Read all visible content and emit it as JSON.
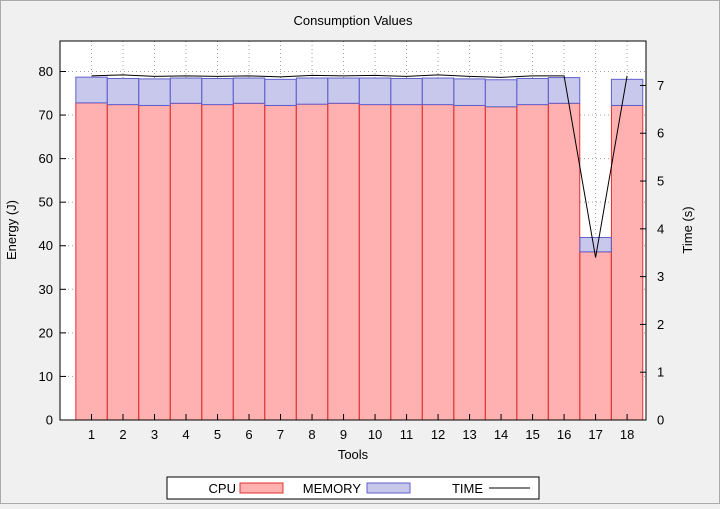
{
  "chart_data": {
    "type": "bar",
    "stacked": true,
    "title": "Consumption Values",
    "xlabel": "Tools",
    "ylabel": "Energy (J)",
    "y2label": "Time (s)",
    "categories": [
      "1",
      "2",
      "3",
      "4",
      "5",
      "6",
      "7",
      "8",
      "9",
      "10",
      "11",
      "12",
      "13",
      "14",
      "15",
      "16",
      "17",
      "18"
    ],
    "ylim": [
      0,
      87
    ],
    "yticks": [
      0,
      10,
      20,
      30,
      40,
      50,
      60,
      70,
      80
    ],
    "y2lim": [
      0,
      7.93
    ],
    "y2ticks": [
      0,
      1,
      2,
      3,
      4,
      5,
      6,
      7
    ],
    "grid": true,
    "legend_position": "bottom",
    "series": [
      {
        "name": "CPU",
        "kind": "bar",
        "color": "#ffb0b0",
        "edge": "#e03030",
        "values": [
          72.8,
          72.4,
          72.2,
          72.7,
          72.4,
          72.7,
          72.2,
          72.5,
          72.7,
          72.4,
          72.4,
          72.4,
          72.2,
          71.9,
          72.4,
          72.7,
          38.6,
          72.2
        ]
      },
      {
        "name": "MEMORY",
        "kind": "bar",
        "color": "#c8c8ec",
        "edge": "#6060cc",
        "values": [
          5.9,
          6.0,
          6.1,
          5.8,
          6.0,
          5.8,
          6.0,
          6.0,
          5.8,
          6.1,
          6.0,
          6.1,
          6.1,
          6.2,
          6.0,
          5.9,
          3.3,
          6.0
        ]
      },
      {
        "name": "TIME",
        "kind": "line",
        "axis": "y2",
        "color": "#000000",
        "values": [
          7.2,
          7.22,
          7.19,
          7.2,
          7.19,
          7.2,
          7.18,
          7.21,
          7.2,
          7.21,
          7.19,
          7.22,
          7.19,
          7.17,
          7.2,
          7.2,
          3.4,
          7.2
        ]
      }
    ]
  }
}
